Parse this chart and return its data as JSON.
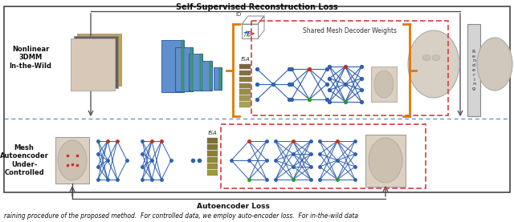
{
  "figsize": [
    6.4,
    2.77
  ],
  "dpi": 100,
  "bg_color": "#ffffff",
  "top_label": "Self-Supervised Reconstruction Loss",
  "bottom_label": "Autoencoder Loss",
  "left_top_label": "Nonlinear\n3DMM\nIn-the-Wild",
  "left_bot_label": "Mesh\nAutoencoder\nUnder-\nControlled",
  "shared_label": "Shared Mesh Decoder Weights",
  "rendering_label": "R\ne\nn\nd\ne\nr\ni\nn\ng",
  "caption": "raining procedure of the proposed method.  For controlled data, we employ auto-encoder loss.  For in-the-wild data",
  "outer_box_color": "#444444",
  "dashed_red_color": "#d04040",
  "orange_color": "#e07800",
  "blue_dash_color": "#5090c8",
  "blue_net_color": "#3060b0",
  "green_node": "#20a020",
  "red_node": "#c03020",
  "blue_node": "#3060b0",
  "arrow_color": "#444444",
  "face_skin": "#d8c8b0",
  "face_edge": "#999999"
}
